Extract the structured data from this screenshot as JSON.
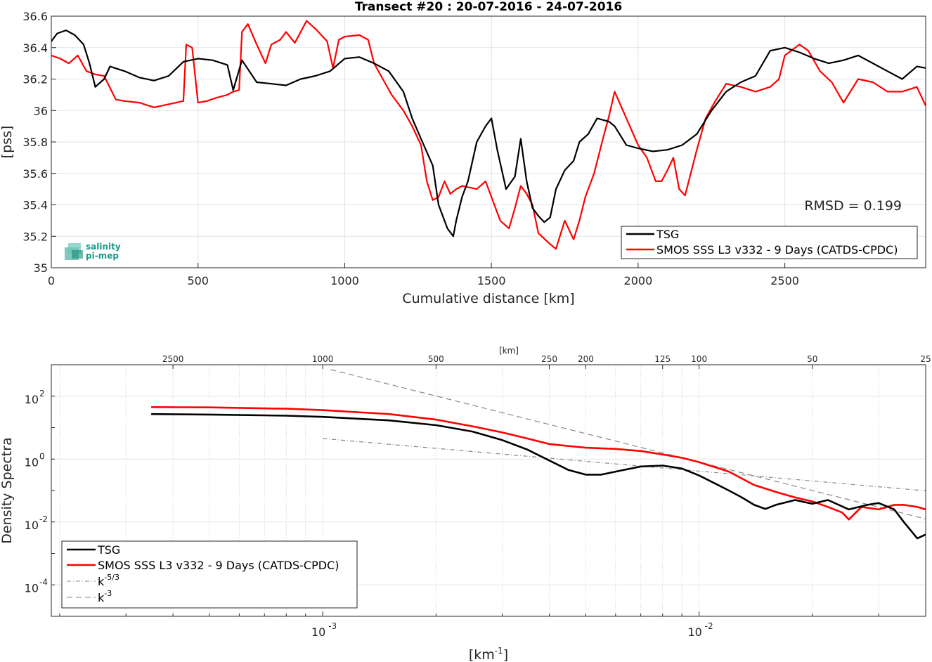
{
  "chart_data": [
    {
      "type": "line",
      "title": "Transect #20 : 20-07-2016 - 24-07-2016",
      "xlabel": "Cumulative distance [km]",
      "ylabel": "[pss]",
      "xlim": [
        0,
        2980
      ],
      "ylim": [
        35,
        36.6
      ],
      "xticks": [
        0,
        500,
        1000,
        1500,
        2000,
        2500
      ],
      "yticks": [
        35,
        35.2,
        35.4,
        35.6,
        35.8,
        36,
        36.2,
        36.4,
        36.6
      ],
      "ytick_labels": [
        "35",
        "35.2",
        "35.4",
        "35.6",
        "35.8",
        "36",
        "36.2",
        "36.4",
        "36.6"
      ],
      "grid": true,
      "legend_position": "bottom-right",
      "annotation": "RMSD = 0.199",
      "logo": {
        "line1": "salinity",
        "line2": "pi-mep"
      },
      "series": [
        {
          "name": "TSG",
          "color": "#000000",
          "x": [
            0,
            20,
            50,
            80,
            110,
            130,
            150,
            180,
            200,
            250,
            300,
            350,
            400,
            450,
            500,
            550,
            600,
            620,
            650,
            700,
            750,
            800,
            850,
            900,
            950,
            1000,
            1050,
            1100,
            1150,
            1200,
            1230,
            1260,
            1300,
            1320,
            1350,
            1370,
            1380,
            1400,
            1420,
            1450,
            1480,
            1500,
            1520,
            1550,
            1580,
            1600,
            1620,
            1640,
            1660,
            1680,
            1700,
            1720,
            1750,
            1780,
            1800,
            1830,
            1860,
            1900,
            1920,
            1960,
            2000,
            2050,
            2100,
            2150,
            2200,
            2250,
            2300,
            2350,
            2400,
            2450,
            2500,
            2550,
            2600,
            2650,
            2700,
            2750,
            2800,
            2850,
            2900,
            2950,
            2980
          ],
          "y": [
            36.44,
            36.49,
            36.51,
            36.48,
            36.42,
            36.3,
            36.15,
            36.2,
            36.28,
            36.25,
            36.21,
            36.19,
            36.22,
            36.31,
            36.33,
            36.32,
            36.29,
            36.13,
            36.32,
            36.18,
            36.17,
            36.16,
            36.2,
            36.22,
            36.25,
            36.33,
            36.34,
            36.3,
            36.25,
            36.12,
            35.95,
            35.82,
            35.65,
            35.4,
            35.25,
            35.2,
            35.3,
            35.45,
            35.55,
            35.8,
            35.9,
            35.95,
            35.75,
            35.5,
            35.58,
            35.82,
            35.55,
            35.38,
            35.33,
            35.29,
            35.32,
            35.5,
            35.62,
            35.68,
            35.8,
            35.85,
            35.95,
            35.93,
            35.9,
            35.78,
            35.76,
            35.74,
            35.75,
            35.78,
            35.85,
            36.0,
            36.12,
            36.18,
            36.22,
            36.38,
            36.4,
            36.37,
            36.33,
            36.3,
            36.32,
            36.35,
            36.3,
            36.25,
            36.2,
            36.28,
            36.27
          ]
        },
        {
          "name": "SMOS SSS L3 v332 - 9 Days (CATDS-CPDC)",
          "color": "#ff0000",
          "x": [
            0,
            30,
            60,
            90,
            120,
            150,
            180,
            220,
            250,
            300,
            350,
            400,
            450,
            460,
            480,
            500,
            530,
            560,
            600,
            620,
            640,
            650,
            670,
            700,
            730,
            750,
            780,
            800,
            830,
            870,
            900,
            940,
            960,
            980,
            1000,
            1050,
            1080,
            1100,
            1130,
            1160,
            1200,
            1230,
            1260,
            1280,
            1300,
            1320,
            1340,
            1360,
            1380,
            1400,
            1450,
            1480,
            1500,
            1530,
            1560,
            1580,
            1600,
            1620,
            1640,
            1660,
            1700,
            1720,
            1750,
            1780,
            1800,
            1820,
            1850,
            1880,
            1900,
            1920,
            1960,
            2000,
            2030,
            2060,
            2080,
            2100,
            2120,
            2140,
            2160,
            2200,
            2230,
            2260,
            2300,
            2350,
            2400,
            2450,
            2480,
            2500,
            2550,
            2580,
            2620,
            2660,
            2700,
            2750,
            2800,
            2850,
            2900,
            2950,
            2980
          ],
          "y": [
            36.35,
            36.33,
            36.3,
            36.35,
            36.25,
            36.23,
            36.22,
            36.07,
            36.06,
            36.05,
            36.02,
            36.04,
            36.06,
            36.42,
            36.4,
            36.05,
            36.06,
            36.08,
            36.1,
            36.12,
            36.13,
            36.5,
            36.55,
            36.42,
            36.3,
            36.42,
            36.45,
            36.5,
            36.43,
            36.57,
            36.52,
            36.44,
            36.27,
            36.45,
            36.47,
            36.48,
            36.45,
            36.3,
            36.2,
            36.1,
            36.0,
            35.9,
            35.78,
            35.55,
            35.43,
            35.45,
            35.55,
            35.47,
            35.5,
            35.52,
            35.5,
            35.55,
            35.45,
            35.3,
            35.25,
            35.38,
            35.52,
            35.47,
            35.4,
            35.22,
            35.15,
            35.12,
            35.3,
            35.18,
            35.3,
            35.45,
            35.6,
            35.82,
            35.96,
            36.12,
            35.95,
            35.78,
            35.7,
            35.55,
            35.55,
            35.62,
            35.7,
            35.5,
            35.46,
            35.75,
            35.95,
            36.05,
            36.17,
            36.15,
            36.12,
            36.15,
            36.2,
            36.35,
            36.42,
            36.38,
            36.25,
            36.18,
            36.05,
            36.2,
            36.18,
            36.12,
            36.12,
            36.15,
            36.03
          ]
        }
      ]
    },
    {
      "type": "line",
      "title": "",
      "xlabel": "[km-1]",
      "ylabel": "Density Spectra",
      "top_axis_label": "[km]",
      "xscale": "log",
      "yscale": "log",
      "xlim": [
        0.00019,
        0.04
      ],
      "ylim": [
        1e-05,
        1000
      ],
      "xticks": [
        0.001,
        0.01
      ],
      "ytick_exponents": [
        2,
        0,
        -2,
        -4
      ],
      "top_ticks": [
        "2500",
        "1000",
        "500",
        "250",
        "200",
        "125",
        "100",
        "50",
        "25"
      ],
      "grid": true,
      "legend_position": "bottom-left",
      "series": [
        {
          "name": "TSG",
          "color": "#000000",
          "x": [
            0.00035,
            0.0005,
            0.0008,
            0.001,
            0.0015,
            0.002,
            0.0025,
            0.003,
            0.0035,
            0.004,
            0.0045,
            0.005,
            0.0055,
            0.006,
            0.007,
            0.008,
            0.009,
            0.01,
            0.011,
            0.012,
            0.013,
            0.014,
            0.015,
            0.016,
            0.018,
            0.02,
            0.022,
            0.025,
            0.028,
            0.03,
            0.033,
            0.035,
            0.038,
            0.04
          ],
          "y": [
            27,
            26,
            24,
            22,
            17,
            12,
            7.5,
            4,
            2,
            0.9,
            0.45,
            0.32,
            0.32,
            0.4,
            0.58,
            0.62,
            0.5,
            0.3,
            0.17,
            0.1,
            0.06,
            0.035,
            0.026,
            0.035,
            0.05,
            0.038,
            0.05,
            0.025,
            0.035,
            0.04,
            0.025,
            0.01,
            0.003,
            0.004
          ]
        },
        {
          "name": "SMOS SSS L3 v332 - 9 Days (CATDS-CPDC)",
          "color": "#ff0000",
          "x": [
            0.00035,
            0.0005,
            0.0008,
            0.001,
            0.0015,
            0.002,
            0.0025,
            0.003,
            0.0035,
            0.004,
            0.005,
            0.006,
            0.007,
            0.008,
            0.009,
            0.01,
            0.012,
            0.014,
            0.016,
            0.018,
            0.02,
            0.022,
            0.024,
            0.025,
            0.027,
            0.03,
            0.033,
            0.035,
            0.038,
            0.04
          ],
          "y": [
            45,
            44,
            40,
            36,
            27,
            18,
            11,
            7,
            4.5,
            3,
            2.3,
            2.1,
            1.8,
            1.4,
            1.1,
            0.8,
            0.4,
            0.15,
            0.09,
            0.06,
            0.045,
            0.03,
            0.02,
            0.012,
            0.03,
            0.025,
            0.035,
            0.035,
            0.03,
            0.025
          ]
        },
        {
          "name": "k^-5/3",
          "color": "#888888",
          "dash": "6 3 1 3",
          "x": [
            0.001,
            0.04
          ],
          "y": [
            4.5,
            0.098
          ]
        },
        {
          "name": "k^-3",
          "color": "#888888",
          "dash": "8 5",
          "x": [
            0.00105,
            0.04
          ],
          "y": [
            700,
            0.0125
          ]
        }
      ]
    }
  ]
}
